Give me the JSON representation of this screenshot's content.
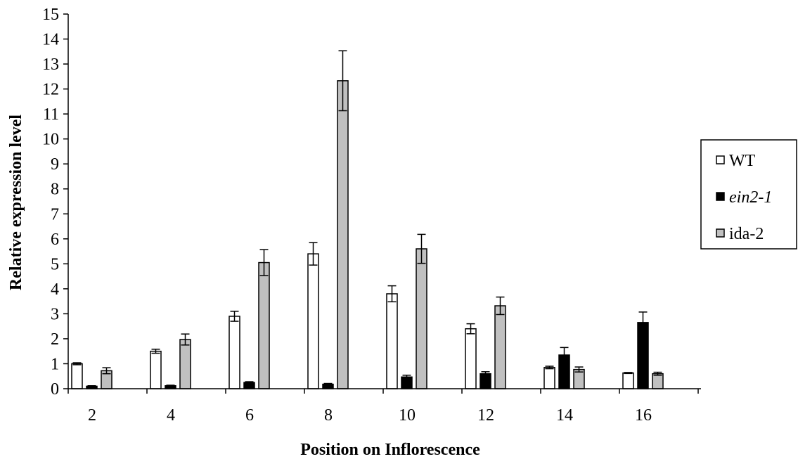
{
  "chart_data": {
    "type": "bar",
    "title": "",
    "xlabel": "Position on Inflorescence",
    "ylabel": "Relative expression level",
    "ylim": [
      0,
      15
    ],
    "y_ticks": [
      "0",
      "1",
      "2",
      "3",
      "4",
      "5",
      "6",
      "7",
      "8",
      "9",
      "10",
      "11",
      "12",
      "13",
      "14",
      "15"
    ],
    "categories": [
      "2",
      "4",
      "6",
      "8",
      "10",
      "12",
      "14",
      "16"
    ],
    "grid": false,
    "legend_position": "right",
    "series": [
      {
        "name": "WT",
        "color": "#ffffff",
        "italic": false,
        "values": [
          1.0,
          1.5,
          2.9,
          5.4,
          3.8,
          2.4,
          0.85,
          0.63
        ],
        "errors": [
          0.04,
          0.08,
          0.2,
          0.45,
          0.32,
          0.2,
          0.05,
          0.02
        ]
      },
      {
        "name": "ein2-1",
        "color": "#000000",
        "italic": true,
        "values": [
          0.1,
          0.12,
          0.25,
          0.18,
          0.47,
          0.6,
          1.35,
          2.65
        ],
        "errors": [
          0.02,
          0.02,
          0.03,
          0.03,
          0.07,
          0.08,
          0.3,
          0.42
        ]
      },
      {
        "name": "ida-2",
        "color": "#c0c0c0",
        "italic": false,
        "values": [
          0.72,
          1.97,
          5.05,
          12.33,
          5.6,
          3.32,
          0.77,
          0.6
        ],
        "errors": [
          0.12,
          0.22,
          0.52,
          1.2,
          0.58,
          0.35,
          0.1,
          0.06
        ]
      }
    ]
  }
}
